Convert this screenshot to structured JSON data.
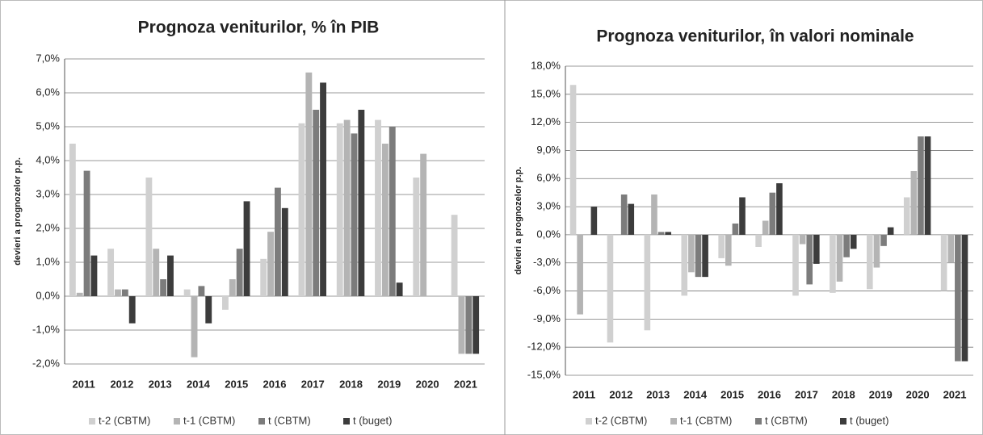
{
  "chart_data": [
    {
      "type": "bar",
      "title": "Prognoza veniturilor, % în PIB",
      "y_label": "devieri a prognozelor p.p.",
      "categories": [
        "2011",
        "2012",
        "2013",
        "2014",
        "2015",
        "2016",
        "2017",
        "2018",
        "2019",
        "2020",
        "2021"
      ],
      "series": [
        {
          "name": "t-2 (CBTM)",
          "color": "#d0d0d0",
          "values": [
            4.5,
            1.4,
            3.5,
            0.2,
            -0.4,
            1.1,
            5.1,
            5.1,
            5.2,
            3.5,
            2.4
          ]
        },
        {
          "name": "t-1 (CBTM)",
          "color": "#b4b4b4",
          "values": [
            0.1,
            0.2,
            1.4,
            -1.8,
            0.5,
            1.9,
            6.6,
            5.2,
            4.5,
            4.2,
            -1.7
          ]
        },
        {
          "name": "t (CBTM)",
          "color": "#7c7c7c",
          "values": [
            3.7,
            0.2,
            0.5,
            0.3,
            1.4,
            3.2,
            5.5,
            4.8,
            5.0,
            null,
            -1.7
          ]
        },
        {
          "name": "t (buget)",
          "color": "#3c3c3c",
          "values": [
            1.2,
            -0.8,
            1.2,
            -0.8,
            2.8,
            2.6,
            6.3,
            5.5,
            0.4,
            null,
            -1.7
          ]
        }
      ],
      "ylim": [
        -2,
        7
      ],
      "yticks": [
        {
          "value": -2,
          "label": "-2,0%"
        },
        {
          "value": -1,
          "label": "-1,0%"
        },
        {
          "value": 0,
          "label": "0,0%"
        },
        {
          "value": 1,
          "label": "1,0%"
        },
        {
          "value": 2,
          "label": "2,0%"
        },
        {
          "value": 3,
          "label": "3,0%"
        },
        {
          "value": 4,
          "label": "4,0%"
        },
        {
          "value": 5,
          "label": "5,0%"
        },
        {
          "value": 6,
          "label": "6,0%"
        },
        {
          "value": 7,
          "label": "7,0%"
        }
      ],
      "grid": true
    },
    {
      "type": "bar",
      "title": "Prognoza veniturilor, în valori nominale",
      "y_label": "devieri a prognozelor p.p.",
      "categories": [
        "2011",
        "2012",
        "2013",
        "2014",
        "2015",
        "2016",
        "2017",
        "2018",
        "2019",
        "2020",
        "2021"
      ],
      "series": [
        {
          "name": "t-2 (CBTM)",
          "color": "#d0d0d0",
          "values": [
            16.0,
            -11.5,
            -10.2,
            -6.5,
            -2.5,
            -1.3,
            -6.5,
            -6.2,
            -5.8,
            4.0,
            -6.0
          ]
        },
        {
          "name": "t-1 (CBTM)",
          "color": "#b4b4b4",
          "values": [
            -8.5,
            null,
            4.3,
            -4.0,
            -3.3,
            1.5,
            -1.0,
            -5.0,
            -3.5,
            6.8,
            -3.0
          ]
        },
        {
          "name": "t (CBTM)",
          "color": "#7c7c7c",
          "values": [
            null,
            4.3,
            0.3,
            -4.5,
            1.2,
            4.5,
            -5.3,
            -2.4,
            -1.2,
            10.5,
            -13.5
          ]
        },
        {
          "name": "t (buget)",
          "color": "#3c3c3c",
          "values": [
            3.0,
            3.3,
            0.3,
            -4.5,
            4.0,
            5.5,
            -3.1,
            -1.5,
            0.8,
            10.5,
            -13.5
          ]
        }
      ],
      "ylim": [
        -15,
        18
      ],
      "yticks": [
        {
          "value": -15,
          "label": "-15,0%"
        },
        {
          "value": -12,
          "label": "-12,0%"
        },
        {
          "value": -9,
          "label": "-9,0%"
        },
        {
          "value": -6,
          "label": "-6,0%"
        },
        {
          "value": -3,
          "label": "-3,0%"
        },
        {
          "value": 0,
          "label": "0,0%"
        },
        {
          "value": 3,
          "label": "3,0%"
        },
        {
          "value": 6,
          "label": "6,0%"
        },
        {
          "value": 9,
          "label": "9,0%"
        },
        {
          "value": 12,
          "label": "12,0%"
        },
        {
          "value": 15,
          "label": "15,0%"
        },
        {
          "value": 18,
          "label": "18,0%"
        }
      ],
      "grid": true
    }
  ]
}
